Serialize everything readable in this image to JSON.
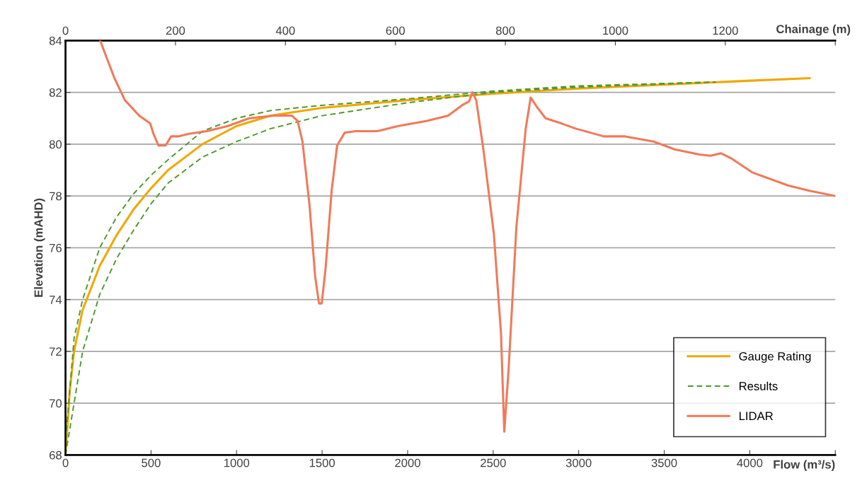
{
  "chart_data": {
    "type": "line",
    "xlabel": "Flow (m³/s)",
    "x2label": "Chainage (m)",
    "ylabel": "Elevation (mAHD)",
    "xlim": [
      0,
      4500
    ],
    "xticks": [
      0,
      500,
      1000,
      1500,
      2000,
      2500,
      3000,
      3500,
      4000,
      {
        "value": 4500,
        "label": null
      }
    ],
    "x2lim": [
      0,
      1400
    ],
    "x2ticks": [
      0,
      200,
      400,
      600,
      800,
      1000,
      1200,
      {
        "value": 1400,
        "label": null
      }
    ],
    "ylim": [
      68,
      84
    ],
    "yticks": [
      68,
      70,
      72,
      74,
      76,
      78,
      80,
      82,
      84
    ],
    "grid": "y",
    "legend": "bottom right",
    "series": [
      {
        "name": "Gauge Rating",
        "color": "#f0a800",
        "line_style": "solid",
        "x": [
          0,
          25,
          50,
          100,
          200,
          300,
          400,
          500,
          600,
          800,
          1000,
          1200,
          1500,
          2000,
          2500,
          3000,
          3500,
          4000,
          4350
        ],
        "values": [
          68,
          70.5,
          72,
          73.6,
          75.3,
          76.5,
          77.5,
          78.3,
          79,
          80,
          80.7,
          81.1,
          81.4,
          81.7,
          81.95,
          82.15,
          82.3,
          82.45,
          82.55
        ]
      },
      {
        "name": "Results",
        "color": "#4e9a2e",
        "line_style": "dashed",
        "x": [
          0,
          50,
          100,
          200,
          300,
          400,
          500,
          600,
          800,
          1000,
          1200,
          1500,
          2000,
          2500,
          3000,
          3800,
          3000,
          2500,
          2000,
          1500,
          1200,
          1000,
          800,
          600,
          500,
          400,
          300,
          200,
          100,
          50,
          0
        ],
        "values": [
          68,
          70,
          72,
          74.2,
          75.6,
          76.7,
          77.7,
          78.5,
          79.5,
          80.1,
          80.6,
          81.1,
          81.6,
          82.0,
          82.2,
          82.4,
          82.25,
          82.05,
          81.75,
          81.5,
          81.3,
          81.0,
          80.5,
          79.4,
          78.8,
          78.1,
          77.2,
          76.0,
          74.0,
          72.5,
          68.5
        ]
      },
      {
        "name": "LIDAR",
        "color": "#f07a5a",
        "line_style": "solid",
        "axis": "x2",
        "x": [
          63,
          89,
          108,
          134,
          154,
          160,
          169,
          182,
          192,
          205,
          224,
          257,
          295,
          334,
          379,
          412,
          422,
          431,
          444,
          454,
          461,
          466,
          473,
          484,
          494,
          508,
          528,
          567,
          605,
          657,
          696,
          721,
          734,
          740,
          747,
          760,
          779,
          792,
          798,
          806,
          820,
          837,
          846,
          857,
          873,
          902,
          928,
          979,
          1018,
          1070,
          1108,
          1153,
          1173,
          1192,
          1211,
          1250,
          1276,
          1315,
          1353,
          1400
        ],
        "values": [
          84.0,
          82.55,
          81.7,
          81.1,
          80.8,
          80.4,
          79.95,
          79.95,
          80.3,
          80.3,
          80.4,
          80.5,
          80.7,
          81.0,
          81.1,
          81.1,
          80.9,
          80.1,
          77.6,
          74.9,
          73.85,
          73.85,
          75.2,
          78.2,
          79.95,
          80.45,
          80.5,
          80.5,
          80.7,
          80.9,
          81.1,
          81.5,
          81.65,
          82.0,
          81.7,
          79.8,
          76.55,
          72.7,
          68.9,
          71.35,
          76.8,
          80.6,
          81.8,
          81.45,
          81.0,
          80.8,
          80.6,
          80.3,
          80.3,
          80.1,
          79.8,
          79.6,
          79.55,
          79.65,
          79.45,
          78.9,
          78.7,
          78.4,
          78.2,
          78.0
        ]
      }
    ]
  }
}
